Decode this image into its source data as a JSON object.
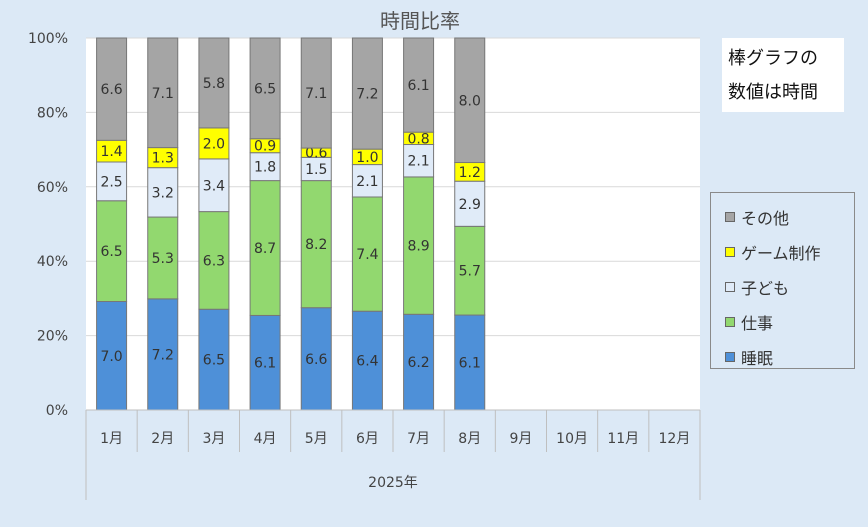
{
  "chart_data": {
    "type": "bar",
    "stacked": true,
    "title": "時間比率",
    "group_label": "2025年",
    "categories": [
      "1月",
      "2月",
      "3月",
      "4月",
      "5月",
      "6月",
      "7月",
      "8月",
      "9月",
      "10月",
      "11月",
      "12月"
    ],
    "y_ticks": [
      "0%",
      "20%",
      "40%",
      "60%",
      "80%",
      "100%"
    ],
    "ylim": [
      0,
      100
    ],
    "grid": true,
    "legend_position": "right",
    "note_lines": [
      "棒グラフの",
      "数値は時間"
    ],
    "series": [
      {
        "name": "睡眠",
        "color": "#4e90d8",
        "values": [
          7.0,
          7.2,
          6.5,
          6.1,
          6.6,
          6.4,
          6.2,
          6.1,
          null,
          null,
          null,
          null
        ]
      },
      {
        "name": "仕事",
        "color": "#92d86f",
        "values": [
          6.5,
          5.3,
          6.3,
          8.7,
          8.2,
          7.4,
          8.9,
          5.7,
          null,
          null,
          null,
          null
        ]
      },
      {
        "name": "子ども",
        "color": "#e0ebf8",
        "values": [
          2.5,
          3.2,
          3.4,
          1.8,
          1.5,
          2.1,
          2.1,
          2.9,
          null,
          null,
          null,
          null
        ]
      },
      {
        "name": "ゲーム制作",
        "color": "#ffff00",
        "values": [
          1.4,
          1.3,
          2.0,
          0.9,
          0.6,
          1.0,
          0.8,
          1.2,
          null,
          null,
          null,
          null
        ]
      },
      {
        "name": "その他",
        "color": "#a5a5a5",
        "values": [
          6.6,
          7.1,
          5.8,
          6.5,
          7.1,
          7.2,
          6.1,
          8.0,
          null,
          null,
          null,
          null
        ]
      }
    ],
    "legend_order": [
      4,
      3,
      2,
      1,
      0
    ]
  }
}
